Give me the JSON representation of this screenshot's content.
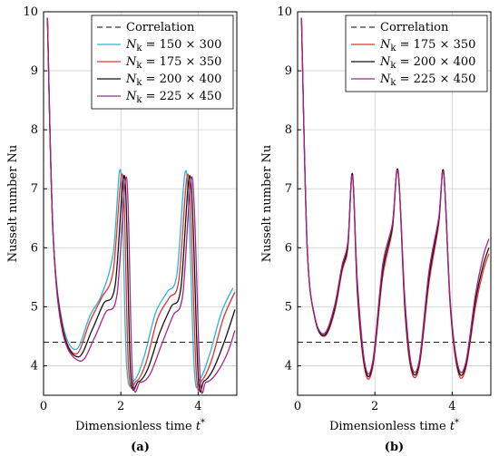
{
  "chart_data": [
    {
      "type": "line",
      "panel_label": "(a)",
      "xlabel": "Dimensionless time t*",
      "ylabel": "Nusselt number Nu",
      "xlim": [
        0,
        5
      ],
      "ylim": [
        3.5,
        10
      ],
      "xticks": [
        0,
        2,
        4
      ],
      "yticks": [
        4,
        5,
        6,
        7,
        8,
        9,
        10
      ],
      "grid": true,
      "legend_position": "top-right",
      "correlation": {
        "name": "Correlation",
        "value": 4.4,
        "color": "#000000",
        "style": "dashed"
      },
      "series": [
        {
          "name": "N_k = 150 × 300",
          "color": "#29b6d6",
          "x": [
            0.1,
            0.25,
            0.5,
            0.85,
            1.2,
            1.5,
            1.8,
            2.0,
            2.15,
            2.35,
            2.6,
            2.9,
            3.2,
            3.45,
            3.7,
            3.9,
            4.05,
            4.3,
            4.6,
            4.9
          ],
          "y": [
            9.9,
            6.2,
            4.7,
            4.28,
            4.85,
            5.2,
            5.9,
            7.28,
            4.0,
            3.76,
            4.15,
            4.9,
            5.25,
            5.55,
            7.28,
            3.95,
            3.78,
            4.2,
            4.9,
            5.32
          ]
        },
        {
          "name": "N_k = 175 × 350",
          "color": "#e8302a",
          "x": [
            0.1,
            0.25,
            0.5,
            0.85,
            1.2,
            1.5,
            1.8,
            2.05,
            2.2,
            2.4,
            2.65,
            2.95,
            3.25,
            3.5,
            3.75,
            3.95,
            4.1,
            4.35,
            4.65,
            4.95
          ],
          "y": [
            9.9,
            6.2,
            4.65,
            4.2,
            4.75,
            5.15,
            5.6,
            7.22,
            3.95,
            3.74,
            4.05,
            4.8,
            5.15,
            5.45,
            7.22,
            3.88,
            3.76,
            4.1,
            4.8,
            5.25
          ]
        },
        {
          "name": "N_k = 200 × 400",
          "color": "#111111",
          "x": [
            0.1,
            0.25,
            0.5,
            0.9,
            1.25,
            1.55,
            1.85,
            2.1,
            2.25,
            2.45,
            2.7,
            3.0,
            3.3,
            3.55,
            3.8,
            4.0,
            4.15,
            4.4,
            4.7,
            4.95
          ],
          "y": [
            9.9,
            6.2,
            4.6,
            4.15,
            4.6,
            5.05,
            5.35,
            7.2,
            3.9,
            3.73,
            3.95,
            4.55,
            5.0,
            5.3,
            7.2,
            3.85,
            3.74,
            3.95,
            4.45,
            4.95
          ]
        },
        {
          "name": "N_k = 225 × 450",
          "color": "#a3268a",
          "x": [
            0.1,
            0.25,
            0.5,
            0.95,
            1.3,
            1.6,
            1.9,
            2.15,
            2.3,
            2.5,
            2.75,
            3.05,
            3.35,
            3.6,
            3.85,
            4.05,
            4.2,
            4.45,
            4.75,
            4.95
          ],
          "y": [
            9.9,
            6.2,
            4.55,
            4.08,
            4.45,
            4.9,
            5.2,
            7.18,
            3.85,
            3.72,
            3.85,
            4.35,
            4.85,
            5.2,
            7.18,
            3.82,
            3.72,
            3.85,
            4.2,
            4.6
          ]
        }
      ]
    },
    {
      "type": "line",
      "panel_label": "(b)",
      "xlabel": "Dimensionless time t*",
      "ylabel": "Nusselt number Nu",
      "xlim": [
        0,
        5
      ],
      "ylim": [
        3.5,
        10
      ],
      "xticks": [
        0,
        2,
        4
      ],
      "yticks": [
        4,
        5,
        6,
        7,
        8,
        9,
        10
      ],
      "grid": true,
      "legend_position": "top-right",
      "correlation": {
        "name": "Correlation",
        "value": 4.4,
        "color": "#000000",
        "style": "dashed"
      },
      "series": [
        {
          "name": "N_k = 175 × 350",
          "color": "#e8302a",
          "x": [
            0.1,
            0.25,
            0.45,
            0.7,
            0.95,
            1.15,
            1.3,
            1.42,
            1.55,
            1.75,
            1.95,
            2.2,
            2.45,
            2.6,
            2.78,
            2.95,
            3.15,
            3.4,
            3.65,
            3.78,
            3.95,
            4.15,
            4.35,
            4.6,
            4.8,
            4.95
          ],
          "y": [
            9.9,
            6.0,
            4.8,
            4.5,
            4.9,
            5.6,
            6.0,
            7.25,
            5.2,
            3.9,
            4.0,
            5.5,
            6.3,
            7.3,
            4.9,
            3.9,
            4.0,
            5.4,
            6.4,
            7.28,
            5.0,
            3.9,
            3.95,
            5.0,
            5.6,
            5.9
          ]
        },
        {
          "name": "N_k = 200 × 400",
          "color": "#111111",
          "x": [
            0.1,
            0.25,
            0.45,
            0.7,
            0.95,
            1.15,
            1.3,
            1.42,
            1.55,
            1.75,
            1.95,
            2.2,
            2.45,
            2.6,
            2.78,
            2.95,
            3.15,
            3.4,
            3.65,
            3.78,
            3.95,
            4.15,
            4.35,
            4.6,
            4.8,
            4.95
          ],
          "y": [
            9.9,
            6.0,
            4.8,
            4.52,
            4.95,
            5.65,
            6.05,
            7.25,
            5.3,
            3.95,
            4.05,
            5.6,
            6.35,
            7.3,
            5.0,
            3.95,
            4.05,
            5.5,
            6.45,
            7.28,
            5.05,
            3.95,
            4.0,
            5.1,
            5.7,
            6.0
          ]
        },
        {
          "name": "N_k = 225 × 450",
          "color": "#a3268a",
          "x": [
            0.1,
            0.25,
            0.45,
            0.7,
            0.95,
            1.15,
            1.3,
            1.42,
            1.55,
            1.75,
            1.95,
            2.2,
            2.45,
            2.6,
            2.78,
            2.95,
            3.15,
            3.4,
            3.65,
            3.78,
            3.95,
            4.15,
            4.35,
            4.6,
            4.8,
            4.95
          ],
          "y": [
            9.9,
            6.0,
            4.82,
            4.55,
            5.0,
            5.7,
            6.1,
            7.22,
            5.4,
            4.0,
            4.1,
            5.7,
            6.4,
            7.28,
            5.1,
            4.0,
            4.1,
            5.6,
            6.5,
            7.25,
            5.1,
            4.0,
            4.05,
            5.2,
            5.85,
            6.15
          ]
        }
      ]
    }
  ]
}
